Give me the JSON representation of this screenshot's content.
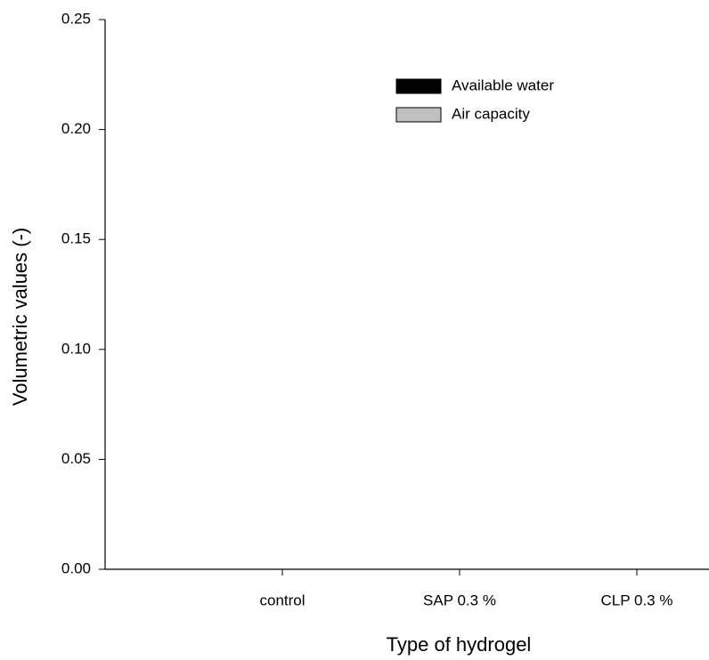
{
  "chart_data": {
    "type": "bar",
    "x_label": "Type of hydrogel",
    "y_label": "Volumetric values  (-)",
    "categories": [
      "control",
      "SAP 0.3 %",
      "CLP 0.3 %"
    ],
    "series": [
      {
        "name": "Available water",
        "color": "#000000",
        "values": [
          null,
          null,
          null
        ]
      },
      {
        "name": "Air capacity",
        "color": "#c0c0c0",
        "values": [
          null,
          null,
          null
        ]
      }
    ],
    "ylim": [
      0,
      0.25
    ],
    "yticks": [
      {
        "value": 0,
        "label": "0.00"
      },
      {
        "value": 0.05,
        "label": "0.05"
      },
      {
        "value": 0.1,
        "label": "0.10"
      },
      {
        "value": 0.15,
        "label": "0.15"
      },
      {
        "value": 0.2,
        "label": "0.20"
      },
      0.25
    ],
    "legend": "top-right"
  }
}
